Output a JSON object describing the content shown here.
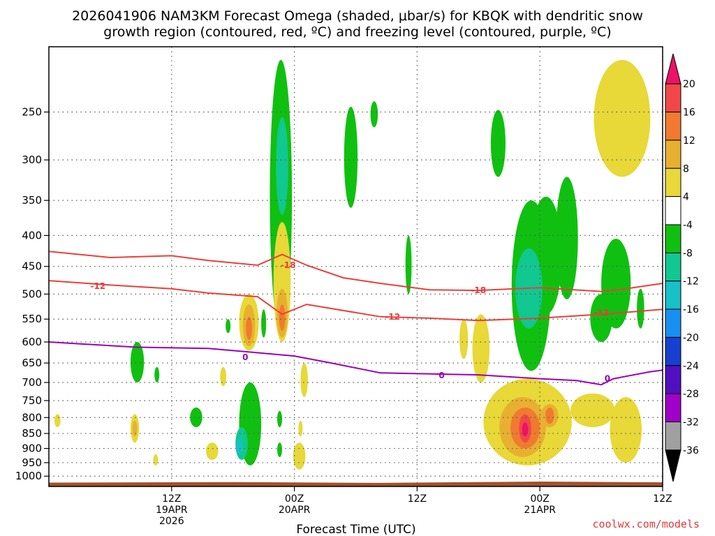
{
  "chart_data": {
    "type": "time-height cross section",
    "title_line1": "2026041906 NAM3KM Forecast Omega (shaded, μbar/s) for KBQK with dendritic snow",
    "title_line2": "growth region (contoured, red, ºC) and freezing level (contoured, purple, ºC)",
    "xlabel": "Forecast Time (UTC)",
    "credit": "coolwx.com/models",
    "x_range_hours": [
      -5,
      45
    ],
    "x_ticks": [
      {
        "hour": 5,
        "lines": [
          "12Z",
          "19APR",
          "2026"
        ]
      },
      {
        "hour": 15,
        "lines": [
          "00Z",
          "20APR"
        ]
      },
      {
        "hour": 25,
        "lines": [
          "12Z"
        ]
      },
      {
        "hour": 35,
        "lines": [
          "00Z",
          "21APR"
        ]
      },
      {
        "hour": 45,
        "lines": [
          "12Z"
        ]
      }
    ],
    "y_axis": {
      "unit": "hPa",
      "range": [
        195,
        1040
      ],
      "ticks": [
        250,
        300,
        350,
        400,
        450,
        500,
        550,
        600,
        650,
        700,
        750,
        800,
        850,
        900,
        950,
        1000
      ]
    },
    "colorbar": {
      "labels": [
        "20",
        "16",
        "12",
        "8",
        "4",
        "-4",
        "-8",
        "-12",
        "-16",
        "-20",
        "-24",
        "-28",
        "-32",
        "-36"
      ],
      "colors": [
        "#ee1266",
        "#f04848",
        "#f07a30",
        "#e8b030",
        "#e8d838",
        "#ffffff",
        "#10c010",
        "#10c890",
        "#18c0c8",
        "#1890f0",
        "#1840d0",
        "#5010c0",
        "#a000c8",
        "#a0a0a0",
        "#000000"
      ]
    },
    "contours": {
      "minus18": {
        "color": "#e8403a",
        "label": "-18",
        "points": [
          [
            -5,
            425
          ],
          [
            0,
            435
          ],
          [
            5,
            432
          ],
          [
            8,
            440
          ],
          [
            12,
            448
          ],
          [
            14,
            430
          ],
          [
            16,
            448
          ],
          [
            19,
            470
          ],
          [
            22,
            480
          ],
          [
            26,
            492
          ],
          [
            30,
            493
          ],
          [
            35,
            488
          ],
          [
            40,
            495
          ],
          [
            42,
            490
          ],
          [
            45,
            480
          ],
          [
            50,
            470
          ]
        ],
        "label_at": [
          [
            14.5,
            448
          ],
          [
            30,
            493
          ]
        ]
      },
      "minus12": {
        "color": "#e8403a",
        "label": "-12",
        "points": [
          [
            -5,
            475
          ],
          [
            0,
            483
          ],
          [
            5,
            490
          ],
          [
            8,
            498
          ],
          [
            12,
            505
          ],
          [
            14,
            540
          ],
          [
            16,
            520
          ],
          [
            22,
            545
          ],
          [
            26,
            548
          ],
          [
            30,
            553
          ],
          [
            35,
            548
          ],
          [
            40,
            540
          ],
          [
            45,
            530
          ],
          [
            50,
            520
          ]
        ],
        "label_at": [
          [
            -1,
            485
          ],
          [
            23,
            545
          ],
          [
            40,
            537
          ]
        ]
      },
      "zero": {
        "color": "#9a00b8",
        "label": "0",
        "points": [
          [
            -5,
            600
          ],
          [
            2,
            612
          ],
          [
            8,
            615
          ],
          [
            12,
            625
          ],
          [
            15,
            633
          ],
          [
            18,
            650
          ],
          [
            22,
            675
          ],
          [
            30,
            680
          ],
          [
            35,
            690
          ],
          [
            38,
            695
          ],
          [
            40,
            706
          ],
          [
            41,
            690
          ],
          [
            44,
            672
          ],
          [
            47,
            660
          ],
          [
            50,
            675
          ]
        ],
        "label_at": [
          [
            11,
            636
          ],
          [
            27,
            682
          ],
          [
            40.5,
            690
          ]
        ]
      }
    },
    "shaded_regions": [
      {
        "value": -8,
        "hour": 13.9,
        "p_top": 205,
        "p_bot": 580,
        "w": 0.9
      },
      {
        "value": -12,
        "hour": 14.0,
        "p_top": 255,
        "p_bot": 370,
        "w": 0.5
      },
      {
        "value": -8,
        "hour": 19.6,
        "p_top": 245,
        "p_bot": 360,
        "w": 0.55
      },
      {
        "value": -8,
        "hour": 21.5,
        "p_top": 240,
        "p_bot": 265,
        "w": 0.3
      },
      {
        "value": -8,
        "hour": 31.6,
        "p_top": 248,
        "p_bot": 320,
        "w": 0.6
      },
      {
        "value": 4,
        "hour": 41.7,
        "p_top": 205,
        "p_bot": 320,
        "w": 2.3
      },
      {
        "value": -8,
        "hour": 34.3,
        "p_top": 350,
        "p_bot": 670,
        "w": 1.6
      },
      {
        "value": -8,
        "hour": 35.5,
        "p_top": 345,
        "p_bot": 540,
        "w": 1.3
      },
      {
        "value": -8,
        "hour": 37.2,
        "p_top": 320,
        "p_bot": 510,
        "w": 0.9
      },
      {
        "value": -12,
        "hour": 34.1,
        "p_top": 420,
        "p_bot": 570,
        "w": 1.1
      },
      {
        "value": -8,
        "hour": 41.2,
        "p_top": 405,
        "p_bot": 570,
        "w": 1.2
      },
      {
        "value": -8,
        "hour": 40.0,
        "p_top": 500,
        "p_bot": 600,
        "w": 0.9
      },
      {
        "value": -8,
        "hour": 43.2,
        "p_top": 490,
        "p_bot": 570,
        "w": 0.3
      },
      {
        "value": -8,
        "hour": 24.3,
        "p_top": 400,
        "p_bot": 500,
        "w": 0.25
      },
      {
        "value": -8,
        "hour": 2.2,
        "p_top": 600,
        "p_bot": 700,
        "w": 0.55
      },
      {
        "value": -8,
        "hour": 3.8,
        "p_top": 660,
        "p_bot": 700,
        "w": 0.2
      },
      {
        "value": -8,
        "hour": 9.6,
        "p_top": 550,
        "p_bot": 580,
        "w": 0.2
      },
      {
        "value": -8,
        "hour": 12.5,
        "p_top": 530,
        "p_bot": 590,
        "w": 0.2
      },
      {
        "value": -8,
        "hour": 7.0,
        "p_top": 770,
        "p_bot": 830,
        "w": 0.5
      },
      {
        "value": -8,
        "hour": 11.4,
        "p_top": 700,
        "p_bot": 960,
        "w": 0.9
      },
      {
        "value": -12,
        "hour": 10.7,
        "p_top": 830,
        "p_bot": 940,
        "w": 0.5
      },
      {
        "value": -16,
        "hour": 10.5,
        "p_top": 870,
        "p_bot": 920,
        "w": 0.25
      },
      {
        "value": -8,
        "hour": 13.8,
        "p_top": 780,
        "p_bot": 830,
        "w": 0.2
      },
      {
        "value": -8,
        "hour": 13.8,
        "p_top": 880,
        "p_bot": 930,
        "w": 0.2
      },
      {
        "value": 4,
        "hour": 14.0,
        "p_top": 380,
        "p_bot": 600,
        "w": 0.7
      },
      {
        "value": 8,
        "hour": 14.0,
        "p_top": 490,
        "p_bot": 590,
        "w": 0.45
      },
      {
        "value": 12,
        "hour": 14.0,
        "p_top": 520,
        "p_bot": 575,
        "w": 0.25
      },
      {
        "value": 4,
        "hour": 11.3,
        "p_top": 500,
        "p_bot": 620,
        "w": 0.8
      },
      {
        "value": 8,
        "hour": 11.3,
        "p_top": 520,
        "p_bot": 610,
        "w": 0.5
      },
      {
        "value": 12,
        "hour": 11.3,
        "p_top": 545,
        "p_bot": 595,
        "w": 0.25
      },
      {
        "value": 4,
        "hour": 2.0,
        "p_top": 790,
        "p_bot": 880,
        "w": 0.35
      },
      {
        "value": 8,
        "hour": 2.0,
        "p_top": 810,
        "p_bot": 860,
        "w": 0.2
      },
      {
        "value": 4,
        "hour": -4.3,
        "p_top": 790,
        "p_bot": 830,
        "w": 0.25
      },
      {
        "value": 4,
        "hour": 3.7,
        "p_top": 920,
        "p_bot": 960,
        "w": 0.2
      },
      {
        "value": 4,
        "hour": 8.3,
        "p_top": 880,
        "p_bot": 940,
        "w": 0.5
      },
      {
        "value": 4,
        "hour": 9.2,
        "p_top": 660,
        "p_bot": 710,
        "w": 0.25
      },
      {
        "value": 4,
        "hour": 15.4,
        "p_top": 880,
        "p_bot": 975,
        "w": 0.5
      },
      {
        "value": 4,
        "hour": 15.8,
        "p_top": 650,
        "p_bot": 740,
        "w": 0.3
      },
      {
        "value": 4,
        "hour": 15.5,
        "p_top": 810,
        "p_bot": 860,
        "w": 0.15
      },
      {
        "value": 4,
        "hour": 28.8,
        "p_top": 550,
        "p_bot": 640,
        "w": 0.35
      },
      {
        "value": 4,
        "hour": 34.0,
        "p_top": 690,
        "p_bot": 960,
        "w": 3.6
      },
      {
        "value": 4,
        "hour": 30.2,
        "p_top": 540,
        "p_bot": 700,
        "w": 0.7
      },
      {
        "value": 4,
        "hour": 39.3,
        "p_top": 730,
        "p_bot": 830,
        "w": 1.8
      },
      {
        "value": 4,
        "hour": 42.0,
        "p_top": 740,
        "p_bot": 950,
        "w": 1.3
      },
      {
        "value": 8,
        "hour": 33.6,
        "p_top": 740,
        "p_bot": 930,
        "w": 1.9
      },
      {
        "value": 12,
        "hour": 33.8,
        "p_top": 770,
        "p_bot": 900,
        "w": 1.2
      },
      {
        "value": 8,
        "hour": 35.8,
        "p_top": 760,
        "p_bot": 830,
        "w": 0.7
      },
      {
        "value": 12,
        "hour": 35.8,
        "p_top": 770,
        "p_bot": 820,
        "w": 0.35
      },
      {
        "value": 16,
        "hour": 33.8,
        "p_top": 790,
        "p_bot": 880,
        "w": 0.5
      },
      {
        "value": 20,
        "hour": 33.8,
        "p_top": 815,
        "p_bot": 860,
        "w": 0.25
      }
    ]
  }
}
